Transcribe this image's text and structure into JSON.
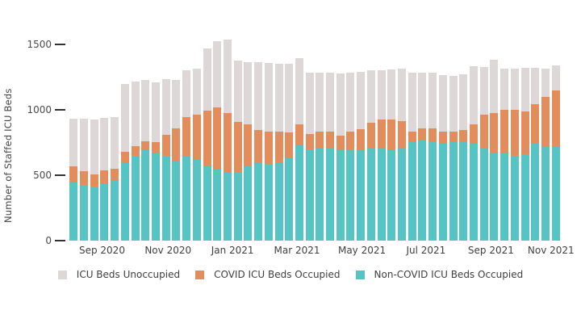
{
  "chart_data": {
    "type": "bar",
    "stacked": true,
    "ylabel": "Number of Staffed ICU Beds",
    "y_ticks": [
      0,
      500,
      1000,
      1500
    ],
    "ylim": [
      0,
      1590
    ],
    "grid": false,
    "legend_position": "bottom-center",
    "x_tick_labels": [
      "Sep 2020",
      "Nov 2020",
      "Jan 2021",
      "Mar 2021",
      "May 2021",
      "Jul 2021",
      "Sep 2021",
      "Nov 2021"
    ],
    "x_tick_positions_pct": [
      6.8,
      20.2,
      33.3,
      46.4,
      59.6,
      72.6,
      85.8,
      98.0
    ],
    "bar_count": 48,
    "series": [
      {
        "name": "Non-COVID ICU Beds Occupied",
        "color": "#56C4C2",
        "values": [
          445,
          425,
          410,
          435,
          460,
          600,
          645,
          690,
          665,
          650,
          610,
          640,
          615,
          565,
          545,
          520,
          525,
          570,
          590,
          585,
          595,
          630,
          730,
          695,
          700,
          710,
          690,
          695,
          690,
          700,
          705,
          690,
          705,
          755,
          765,
          755,
          745,
          750,
          755,
          740,
          700,
          672,
          665,
          650,
          658,
          740,
          715,
          720
        ]
      },
      {
        "name": "COVID ICU Beds Occupied",
        "color": "#E28D5B",
        "values": [
          120,
          105,
          95,
          100,
          90,
          80,
          75,
          70,
          90,
          160,
          245,
          300,
          345,
          430,
          475,
          455,
          380,
          320,
          255,
          250,
          240,
          195,
          155,
          120,
          130,
          120,
          110,
          140,
          160,
          200,
          220,
          235,
          205,
          80,
          90,
          100,
          90,
          85,
          90,
          150,
          260,
          300,
          335,
          350,
          330,
          300,
          385,
          425
        ]
      },
      {
        "name": "ICU Beds Unoccupied",
        "color": "#DDD8D7",
        "values": [
          365,
          400,
          420,
          405,
          395,
          515,
          495,
          465,
          455,
          420,
          370,
          360,
          350,
          475,
          505,
          560,
          470,
          475,
          515,
          520,
          515,
          525,
          510,
          470,
          450,
          455,
          475,
          445,
          440,
          400,
          375,
          380,
          400,
          450,
          425,
          425,
          430,
          425,
          425,
          440,
          365,
          410,
          310,
          310,
          330,
          280,
          215,
          190
        ]
      }
    ],
    "legend": [
      {
        "label": "ICU Beds Unoccupied",
        "color": "#DDD8D7"
      },
      {
        "label": "COVID ICU Beds Occupied",
        "color": "#E28D5B"
      },
      {
        "label": "Non-COVID ICU Beds Occupied",
        "color": "#56C4C2"
      }
    ]
  }
}
